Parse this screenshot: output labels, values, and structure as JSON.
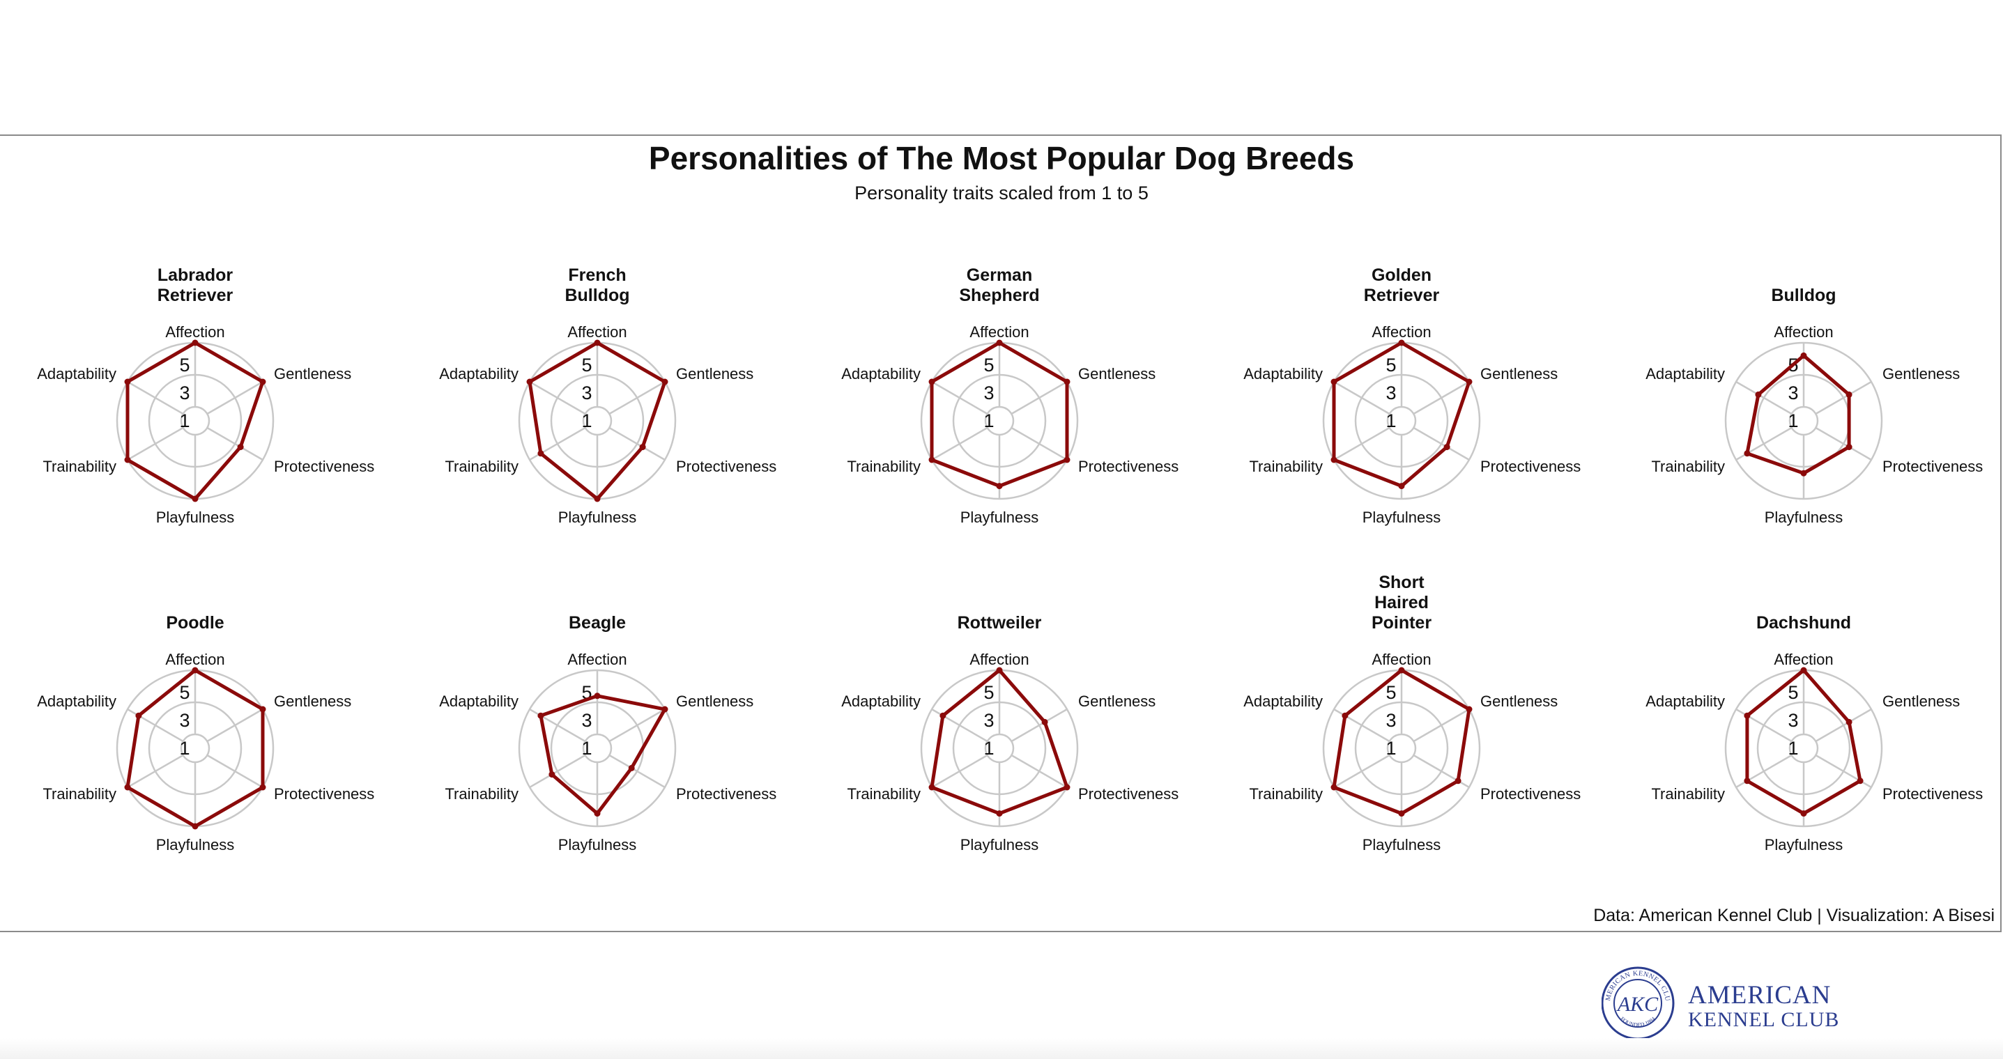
{
  "chart_data": {
    "type": "radar",
    "title": "Personalities of The Most Popular Dog Breeds",
    "subtitle": "Personality traits scaled from 1 to 5",
    "caption": "Data: American Kennel Club | Visualization: A Bisesi",
    "axes": [
      "Affection",
      "Gentleness",
      "Protectiveness",
      "Playfulness",
      "Trainability",
      "Adaptability"
    ],
    "ticks": [
      "1",
      "3",
      "5"
    ],
    "range": [
      0,
      5
    ],
    "line_color": "#8b0a0a",
    "grid_color": "#c8c8c8",
    "breeds": [
      {
        "name": [
          "Labrador",
          "Retriever"
        ],
        "values": [
          5,
          5,
          3,
          5,
          5,
          5
        ]
      },
      {
        "name": [
          "French",
          "Bulldog"
        ],
        "values": [
          5,
          5,
          3,
          5,
          4,
          5
        ]
      },
      {
        "name": [
          "German",
          "Shepherd"
        ],
        "values": [
          5,
          5,
          5,
          4,
          5,
          5
        ]
      },
      {
        "name": [
          "Golden",
          "Retriever"
        ],
        "values": [
          5,
          5,
          3,
          4,
          5,
          5
        ]
      },
      {
        "name": [
          "Bulldog"
        ],
        "values": [
          4,
          3,
          3,
          3,
          4,
          3
        ]
      },
      {
        "name": [
          "Poodle"
        ],
        "values": [
          5,
          5,
          5,
          5,
          5,
          4
        ]
      },
      {
        "name": [
          "Beagle"
        ],
        "values": [
          3,
          5,
          2,
          4,
          3,
          4
        ]
      },
      {
        "name": [
          "Rottweiler"
        ],
        "values": [
          5,
          3,
          5,
          4,
          5,
          4
        ]
      },
      {
        "name": [
          "Short",
          "Haired",
          "Pointer"
        ],
        "values": [
          5,
          5,
          4,
          4,
          5,
          4
        ]
      },
      {
        "name": [
          "Dachshund"
        ],
        "values": [
          5,
          3,
          4,
          4,
          4,
          4
        ]
      }
    ]
  },
  "logo": {
    "line1": "AMERICAN",
    "line2": "KENNEL CLUB",
    "seal_text": "AKC",
    "ring_text": "AMERICAN KENNEL CLUB",
    "founded": "FOUNDED 1884",
    "color": "#2b3d8f"
  }
}
